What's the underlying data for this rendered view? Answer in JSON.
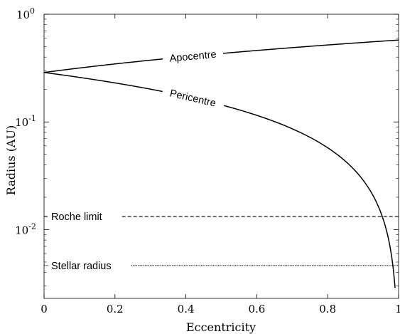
{
  "chart_data": {
    "type": "line",
    "xlabel": "Eccentricity",
    "ylabel": "Radius (AU)",
    "xlim": [
      0,
      1
    ],
    "ylim": [
      0.0023,
      1
    ],
    "yscale": "log",
    "grid": false,
    "x_ticks": [
      "0",
      "0.2",
      "0.4",
      "0.6",
      "0.8",
      "1"
    ],
    "y_ticks": [
      {
        "value": 1,
        "base": "10",
        "exp": "0"
      },
      {
        "value": 0.1,
        "base": "10",
        "exp": "-1"
      },
      {
        "value": 0.01,
        "base": "10",
        "exp": "-2"
      }
    ],
    "semi_major_axis": 0.288,
    "series": [
      {
        "name": "Apocentre",
        "formula": "a*(1+e)",
        "x_range": [
          0,
          1
        ],
        "values": [
          [
            0,
            0.288
          ],
          [
            0.2,
            0.346
          ],
          [
            0.4,
            0.403
          ],
          [
            0.6,
            0.461
          ],
          [
            0.8,
            0.518
          ],
          [
            1.0,
            0.576
          ]
        ],
        "style": "solid"
      },
      {
        "name": "Pericentre",
        "formula": "a*(1-e)",
        "x_range": [
          0,
          0.99
        ],
        "values": [
          [
            0,
            0.288
          ],
          [
            0.2,
            0.23
          ],
          [
            0.4,
            0.173
          ],
          [
            0.6,
            0.115
          ],
          [
            0.8,
            0.0576
          ],
          [
            0.9,
            0.0288
          ],
          [
            0.95,
            0.0144
          ],
          [
            0.99,
            0.00288
          ]
        ],
        "style": "solid"
      }
    ],
    "reference_lines": [
      {
        "name": "Roche limit",
        "y": 0.0132,
        "style": "dashed"
      },
      {
        "name": "Stellar radius",
        "y": 0.00465,
        "style": "dotted"
      }
    ]
  }
}
